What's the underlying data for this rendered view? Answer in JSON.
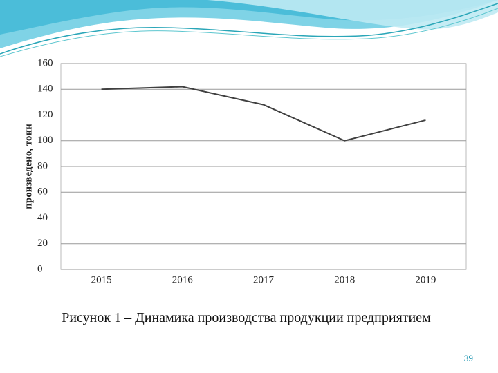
{
  "chart_data": {
    "type": "line",
    "y_label": "произведено, тонн",
    "categories": [
      "2015",
      "2016",
      "2017",
      "2018",
      "2019"
    ],
    "values": [
      140,
      142,
      128,
      100,
      116
    ],
    "color": "#404040",
    "ylim": [
      0,
      160
    ],
    "yticks": [
      0,
      20,
      40,
      60,
      80,
      100,
      120,
      140,
      160
    ],
    "grid": true
  },
  "caption": "Рисунок 1 – Динамика производства продукции предприятием",
  "page_number": "39"
}
